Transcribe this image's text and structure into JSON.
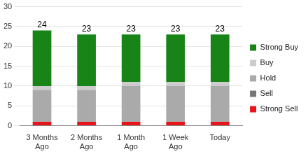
{
  "chart_data": {
    "type": "bar",
    "stacked": true,
    "categories": [
      "3 Months\nAgo",
      "2 Months\nAgo",
      "1 Month\nAgo",
      "1 Week\nAgo",
      "Today"
    ],
    "series": [
      {
        "name": "Strong Sell",
        "color": "#e8141c",
        "values": [
          1,
          1,
          1,
          1,
          1
        ]
      },
      {
        "name": "Sell",
        "color": "#777777",
        "values": [
          0,
          0,
          0,
          0,
          0
        ]
      },
      {
        "name": "Hold",
        "color": "#aaaaaa",
        "values": [
          8,
          8,
          9,
          9,
          9
        ]
      },
      {
        "name": "Buy",
        "color": "#cccccc",
        "values": [
          1,
          1,
          1,
          1,
          1
        ]
      },
      {
        "name": "Strong Buy",
        "color": "#188418",
        "values": [
          14,
          13,
          12,
          12,
          12
        ]
      }
    ],
    "totals": [
      24,
      23,
      23,
      23,
      23
    ],
    "ylim": [
      0,
      30
    ],
    "yticks": [
      0,
      5,
      10,
      15,
      20,
      25,
      30
    ],
    "grid": true,
    "legend": "right"
  }
}
